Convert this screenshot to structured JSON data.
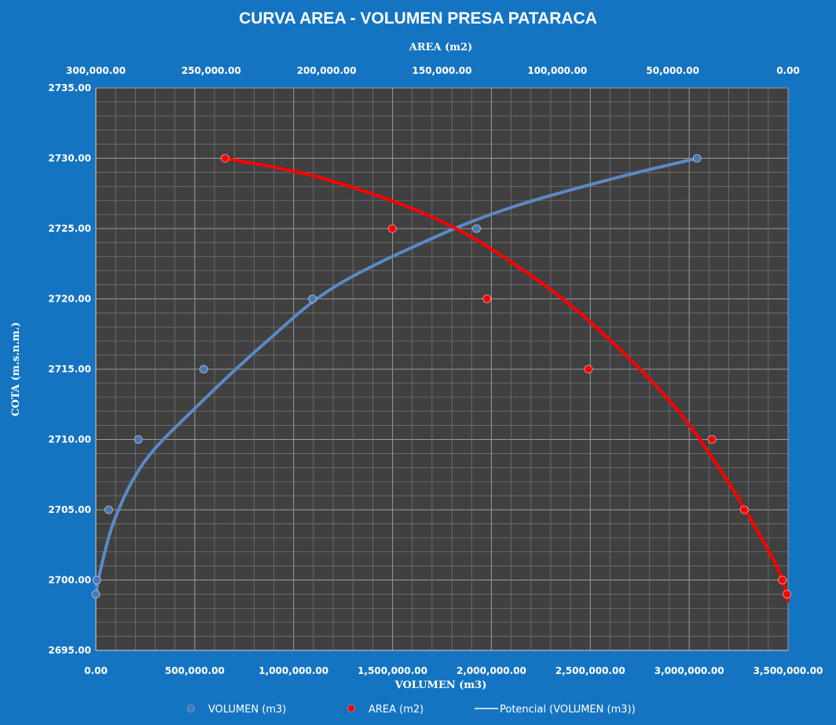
{
  "chart_data": {
    "type": "scatter",
    "title": "CURVA AREA - VOLUMEN PRESA  PATARACA",
    "ylabel": "COTA (m.s.n.m.)",
    "xlabel_bottom": "VOLUMEN (m3)",
    "xlabel_top": "AREA  (m2)",
    "ylim": [
      2695,
      2735
    ],
    "xlim_bottom": [
      0,
      3500000
    ],
    "xlim_top_reversed": [
      300000,
      0
    ],
    "y_ticks": [
      "2695.00",
      "2700.00",
      "2705.00",
      "2710.00",
      "2715.00",
      "2720.00",
      "2725.00",
      "2730.00",
      "2735.00"
    ],
    "x_bottom_ticks": [
      "0.00",
      "500,000.00",
      "1,000,000.00",
      "1,500,000.00",
      "2,000,000.00",
      "2,500,000.00",
      "3,000,000.00",
      "3,500,000.00"
    ],
    "x_top_ticks": [
      "300,000.00",
      "250,000.00",
      "200,000.00",
      "150,000.00",
      "100,000.00",
      "50,000.00",
      "0.00"
    ],
    "grid": true,
    "legend_position": "bottom",
    "series": [
      {
        "name": "VOLUMEN (m3)",
        "axis": "bottom",
        "color": "#4a78b5",
        "points": [
          {
            "x": 0,
            "y": 2699
          },
          {
            "x": 5000,
            "y": 2700
          },
          {
            "x": 65000,
            "y": 2705
          },
          {
            "x": 215000,
            "y": 2710
          },
          {
            "x": 545000,
            "y": 2715
          },
          {
            "x": 1095000,
            "y": 2720
          },
          {
            "x": 1925000,
            "y": 2725
          },
          {
            "x": 3040000,
            "y": 2730
          }
        ]
      },
      {
        "name": "AREA  (m2)",
        "axis": "top",
        "color": "#ff0000",
        "points": [
          {
            "x": 500,
            "y": 2699
          },
          {
            "x": 2500,
            "y": 2700
          },
          {
            "x": 19000,
            "y": 2705
          },
          {
            "x": 33000,
            "y": 2710
          },
          {
            "x": 86500,
            "y": 2715
          },
          {
            "x": 130500,
            "y": 2720
          },
          {
            "x": 171500,
            "y": 2725
          },
          {
            "x": 244000,
            "y": 2730
          }
        ]
      }
    ],
    "trendlines": [
      {
        "name": "Potencial (VOLUMEN (m3))",
        "axis": "bottom",
        "color": "#5a8ac6",
        "points": [
          {
            "x": 0,
            "y": 2698.8
          },
          {
            "x": 20000,
            "y": 2700.5
          },
          {
            "x": 100000,
            "y": 2704.5
          },
          {
            "x": 250000,
            "y": 2708.5
          },
          {
            "x": 500000,
            "y": 2712.2
          },
          {
            "x": 850000,
            "y": 2716.8
          },
          {
            "x": 1200000,
            "y": 2720.8
          },
          {
            "x": 1700000,
            "y": 2724.3
          },
          {
            "x": 2100000,
            "y": 2726.5
          },
          {
            "x": 2600000,
            "y": 2728.5
          },
          {
            "x": 3040000,
            "y": 2730
          }
        ]
      },
      {
        "name": "",
        "axis": "top",
        "color": "#ff0000",
        "points": [
          {
            "x": 244000,
            "y": 2730
          },
          {
            "x": 200000,
            "y": 2728.5
          },
          {
            "x": 150000,
            "y": 2725.5
          },
          {
            "x": 110000,
            "y": 2721.5
          },
          {
            "x": 80000,
            "y": 2717.5
          },
          {
            "x": 50000,
            "y": 2712.5
          },
          {
            "x": 30000,
            "y": 2708
          },
          {
            "x": 15000,
            "y": 2704
          },
          {
            "x": 5000,
            "y": 2701
          },
          {
            "x": 1500,
            "y": 2699.5
          },
          {
            "x": 0,
            "y": 2698.5
          }
        ]
      }
    ],
    "legend": [
      {
        "label": "VOLUMEN (m3)",
        "marker": "dot",
        "color": "#4a78b5"
      },
      {
        "label": "AREA  (m2)",
        "marker": "dot",
        "color": "#ff0000"
      },
      {
        "label": "Potencial (VOLUMEN (m3))",
        "marker": "line",
        "color": "#ffffff"
      }
    ],
    "colors": {
      "background": "#1574c2",
      "plot_background": "#404040",
      "grid": "#7a7a7a",
      "text": "#ffffff"
    }
  }
}
